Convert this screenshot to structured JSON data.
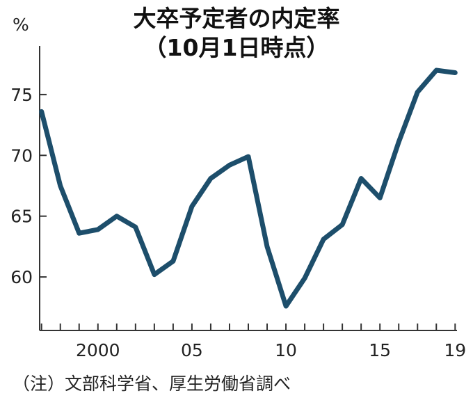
{
  "chart_data": {
    "type": "line",
    "title": "大卒予定者の内定率",
    "subtitle": "（10月1日時点）",
    "ylabel": "%",
    "xlabel": "",
    "x": [
      1997,
      1998,
      1999,
      2000,
      2001,
      2002,
      2003,
      2004,
      2005,
      2006,
      2007,
      2008,
      2009,
      2010,
      2011,
      2012,
      2013,
      2014,
      2015,
      2016,
      2017,
      2018,
      2019
    ],
    "series": [
      {
        "values": [
          73.6,
          67.5,
          63.6,
          63.9,
          65.0,
          64.1,
          60.2,
          61.3,
          65.8,
          68.1,
          69.2,
          69.9,
          62.5,
          57.6,
          59.9,
          63.1,
          64.3,
          68.1,
          66.5,
          71.1,
          75.2,
          77.0,
          76.8
        ]
      }
    ],
    "x_ticks": [
      {
        "value": 2000,
        "label": "2000"
      },
      {
        "value": 2005,
        "label": "05"
      },
      {
        "value": 2010,
        "label": "10"
      },
      {
        "value": 2015,
        "label": "15"
      },
      {
        "value": 2019,
        "label": "19"
      }
    ],
    "y_ticks": [
      {
        "value": 60,
        "label": "60"
      },
      {
        "value": 65,
        "label": "65"
      },
      {
        "value": 70,
        "label": "70"
      },
      {
        "value": 75,
        "label": "75"
      }
    ],
    "xlim": [
      1996.9,
      2019.1
    ],
    "ylim": [
      55.6,
      79.0
    ],
    "grid": false,
    "line_color": "#1d4e6b",
    "source_note": "（注）文部科学省、厚生労働省調べ"
  }
}
